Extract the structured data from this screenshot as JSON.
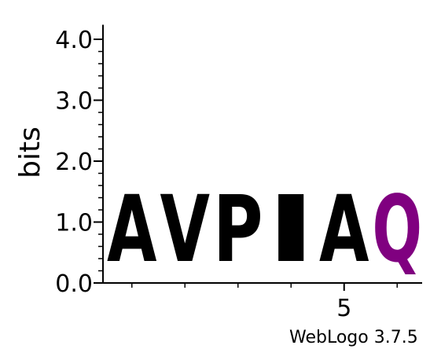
{
  "chart_data": {
    "type": "sequence-logo",
    "ylabel": "bits",
    "ylim": [
      0,
      4.2
    ],
    "y_ticks": [
      {
        "value": 0,
        "label": "0.0"
      },
      {
        "value": 1,
        "label": "1.0"
      },
      {
        "value": 2,
        "label": "2.0"
      },
      {
        "value": 3,
        "label": "3.0"
      },
      {
        "value": 4,
        "label": "4.0"
      }
    ],
    "x_labeled_ticks": [
      {
        "position": 5,
        "label": "5"
      }
    ],
    "positions": [
      {
        "position": 1,
        "letter": "A",
        "bits": 1.76,
        "color": "#000000"
      },
      {
        "position": 2,
        "letter": "V",
        "bits": 1.76,
        "color": "#000000"
      },
      {
        "position": 3,
        "letter": "P",
        "bits": 1.76,
        "color": "#000000"
      },
      {
        "position": 4,
        "letter": "I",
        "bits": 1.76,
        "color": "#000000"
      },
      {
        "position": 5,
        "letter": "A",
        "bits": 1.76,
        "color": "#000000"
      },
      {
        "position": 6,
        "letter": "Q",
        "bits": 1.76,
        "color": "#800080"
      }
    ],
    "credit": "WebLogo 3.7.5"
  }
}
